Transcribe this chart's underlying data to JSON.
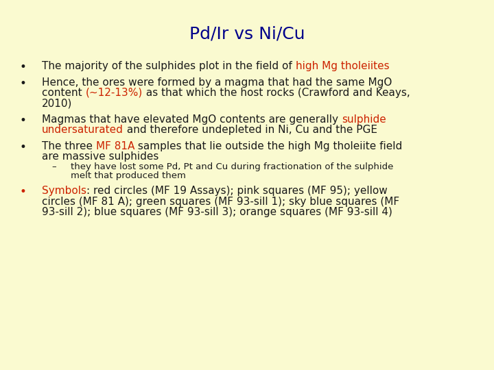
{
  "title": "Pd/Ir vs Ni/Cu",
  "title_color": "#00008B",
  "background_color": "#FAFAD0",
  "bullet_color": "#1a1a1a",
  "red_color": "#CC2200",
  "body_font_size": 11.0,
  "sub_font_size": 9.5,
  "title_font_size": 18,
  "bullets": [
    {
      "parts": [
        {
          "text": "The majority of the sulphides plot in the field of ",
          "color": "#1a1a1a"
        },
        {
          "text": "high Mg tholeiites",
          "color": "#CC2200"
        }
      ]
    },
    {
      "parts": [
        {
          "text": "Hence, the ores were formed by a magma that had the same MgO\ncontent ",
          "color": "#1a1a1a"
        },
        {
          "text": "(~12-13%)",
          "color": "#CC2200"
        },
        {
          "text": " as that which the host rocks (Crawford and Keays,\n2010)",
          "color": "#1a1a1a"
        }
      ]
    },
    {
      "parts": [
        {
          "text": "Magmas that have elevated MgO contents are generally ",
          "color": "#1a1a1a"
        },
        {
          "text": "sulphide\nundersaturated",
          "color": "#CC2200"
        },
        {
          "text": " and therefore undepleted in Ni, Cu and the PGE",
          "color": "#1a1a1a"
        }
      ]
    },
    {
      "parts": [
        {
          "text": "The three ",
          "color": "#1a1a1a"
        },
        {
          "text": "MF 81A",
          "color": "#CC2200"
        },
        {
          "text": " samples that lie outside the high Mg tholeiite field\nare massive sulphides",
          "color": "#1a1a1a"
        }
      ]
    }
  ],
  "sub_bullet": {
    "parts": [
      {
        "text": "they have lost some Pd, Pt and Cu during fractionation of the sulphide\nmelt that produced them",
        "color": "#1a1a1a"
      }
    ]
  },
  "last_bullet": {
    "parts": [
      {
        "text": "Symbols",
        "color": "#CC2200"
      },
      {
        "text": ": red circles (MF 19 Assays); pink squares (MF 95); yellow\ncircles (MF 81 A); green squares (MF 93-sill 1); sky blue squares (MF\n93-sill 2); blue squares (MF 93-sill 3); orange squares (MF 93-sill 4)",
        "color": "#1a1a1a"
      }
    ]
  }
}
